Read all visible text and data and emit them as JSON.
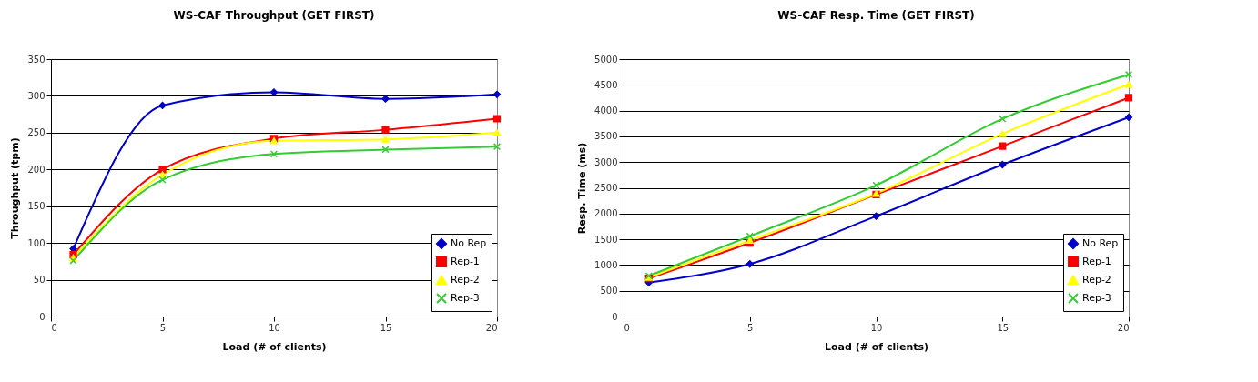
{
  "chart_data": [
    {
      "type": "line",
      "title": "WS-CAF Throughput (GET FIRST)",
      "xlabel": "Load (# of clients)",
      "ylabel": "Throughput (tpm)",
      "x": [
        1,
        5,
        10,
        15,
        20
      ],
      "xlim": [
        0,
        20
      ],
      "xticks": [
        0,
        5,
        10,
        15,
        20
      ],
      "ylim": [
        0,
        350
      ],
      "yticks": [
        0,
        50,
        100,
        150,
        200,
        250,
        300,
        350
      ],
      "grid": "y",
      "legend": "bottom right",
      "series": [
        {
          "name": "No Rep",
          "color": "#0000cc",
          "marker": "diamond",
          "values": [
            92,
            287,
            305,
            296,
            302
          ]
        },
        {
          "name": "Rep-1",
          "color": "#ff0000",
          "marker": "square",
          "values": [
            84,
            200,
            242,
            254,
            269
          ]
        },
        {
          "name": "Rep-2",
          "color": "#ffff00",
          "marker": "triangle",
          "values": [
            80,
            193,
            239,
            241,
            250
          ]
        },
        {
          "name": "Rep-3",
          "color": "#33cc33",
          "marker": "cross",
          "values": [
            76,
            186,
            221,
            227,
            231
          ]
        }
      ]
    },
    {
      "type": "line",
      "title": "WS-CAF Resp. Time (GET FIRST)",
      "xlabel": "Load (# of clients)",
      "ylabel": "Resp. Time (ms)",
      "x": [
        1,
        5,
        10,
        15,
        20
      ],
      "xlim": [
        0,
        20
      ],
      "xticks": [
        0,
        5,
        10,
        15,
        20
      ],
      "ylim": [
        0,
        5000
      ],
      "yticks": [
        0,
        500,
        1000,
        1500,
        2000,
        2500,
        3000,
        3500,
        4000,
        4500,
        5000
      ],
      "grid": "y",
      "legend": "bottom right",
      "series": [
        {
          "name": "No Rep",
          "color": "#0000cc",
          "marker": "diamond",
          "values": [
            660,
            1020,
            1950,
            2950,
            3870
          ]
        },
        {
          "name": "Rep-1",
          "color": "#ff0000",
          "marker": "square",
          "values": [
            740,
            1430,
            2370,
            3310,
            4250
          ]
        },
        {
          "name": "Rep-2",
          "color": "#ffff00",
          "marker": "triangle",
          "values": [
            760,
            1480,
            2390,
            3550,
            4510
          ]
        },
        {
          "name": "Rep-3",
          "color": "#33cc33",
          "marker": "cross",
          "values": [
            790,
            1560,
            2550,
            3840,
            4700
          ]
        }
      ]
    }
  ]
}
